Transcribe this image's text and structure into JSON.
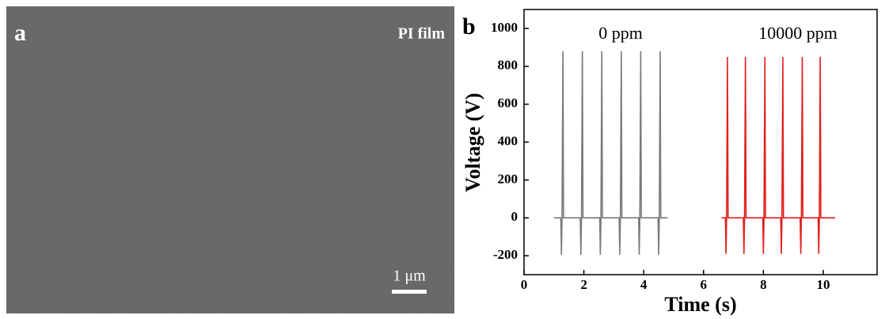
{
  "panel_a": {
    "label": "a",
    "title": "PI film",
    "scale_bar": "1 μm"
  },
  "chart_data": {
    "type": "line",
    "panel_label": "b",
    "xlabel": "Time (s)",
    "ylabel": "Voltage (V)",
    "annotations": [
      "0 ppm",
      "10000 ppm"
    ],
    "xlim": [
      0,
      11.8
    ],
    "ylim": [
      -300,
      1100
    ],
    "xticks": [
      0,
      2,
      4,
      6,
      8,
      10
    ],
    "yticks": [
      -200,
      0,
      200,
      400,
      600,
      800,
      1000
    ],
    "series": [
      {
        "color": "#7a7a7a",
        "x": [
          1.0,
          1.23,
          1.25,
          1.27,
          1.3,
          1.32,
          1.88,
          1.9,
          1.92,
          1.95,
          1.97,
          2.53,
          2.55,
          2.57,
          2.6,
          2.62,
          3.18,
          3.2,
          3.22,
          3.25,
          3.27,
          3.83,
          3.85,
          3.87,
          3.9,
          3.92,
          4.48,
          4.5,
          4.52,
          4.55,
          4.57,
          4.8
        ],
        "values": [
          0,
          0,
          -195,
          0,
          880,
          0,
          0,
          -195,
          0,
          880,
          0,
          0,
          -195,
          0,
          880,
          0,
          0,
          -195,
          0,
          880,
          0,
          0,
          -195,
          0,
          880,
          0,
          0,
          -195,
          0,
          880,
          0,
          0
        ]
      },
      {
        "color": "#e0201b",
        "x": [
          6.6,
          6.73,
          6.75,
          6.77,
          6.8,
          6.82,
          7.33,
          7.35,
          7.37,
          7.4,
          7.42,
          7.98,
          8.0,
          8.02,
          8.05,
          8.07,
          8.58,
          8.6,
          8.62,
          8.65,
          8.67,
          9.23,
          9.25,
          9.27,
          9.3,
          9.32,
          9.83,
          9.85,
          9.87,
          9.9,
          9.92,
          10.4
        ],
        "values": [
          0,
          0,
          -190,
          0,
          850,
          0,
          0,
          -190,
          0,
          850,
          0,
          0,
          -190,
          0,
          850,
          0,
          0,
          -190,
          0,
          850,
          0,
          0,
          -190,
          0,
          850,
          0,
          0,
          -190,
          0,
          850,
          0,
          0
        ]
      }
    ]
  }
}
